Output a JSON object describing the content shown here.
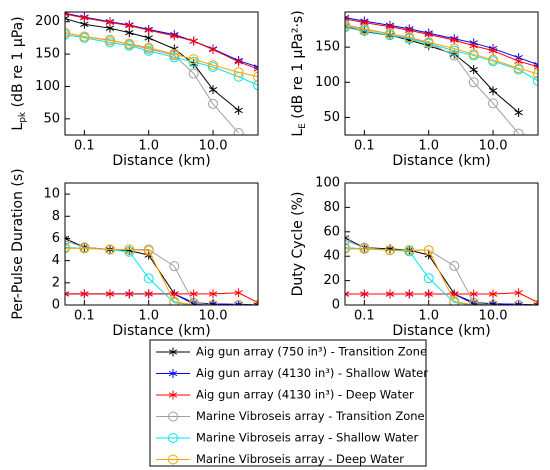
{
  "chart_data": [
    {
      "type": "line",
      "ylabel": {
        "main": "L",
        "sub": "pk",
        "rest": " (dB re 1 μPa)"
      },
      "xlabel": "Distance (km)",
      "x": [
        0.05,
        0.1,
        0.25,
        0.5,
        1,
        2.5,
        5,
        10,
        25,
        50
      ],
      "xscale": "log",
      "xlim": [
        0.05,
        50
      ],
      "xticks": [
        0.1,
        {
          "value": 1,
          "label": "1.0"
        },
        {
          "value": 10,
          "label": "10.0"
        }
      ],
      "ylim": [
        25,
        215
      ],
      "yticks": [
        50,
        100,
        150,
        200
      ],
      "series": [
        {
          "name": "Aig gun array (750 in³) - Transition Zone",
          "color": "#000000",
          "marker": "star",
          "values": [
            205,
            196,
            190,
            183,
            175,
            158,
            135,
            95,
            63,
            null
          ]
        },
        {
          "name": "Aig gun array (4130 in³) - Shallow Water",
          "color": "#0000ff",
          "marker": "star",
          "values": [
            213,
            207,
            200,
            195,
            188,
            180,
            170,
            158,
            140,
            130
          ]
        },
        {
          "name": "Aig gun array (4130 in³) - Deep Water",
          "color": "#ff0000",
          "marker": "star",
          "values": [
            212,
            206,
            199,
            194,
            187,
            178,
            170,
            157,
            138,
            127
          ]
        },
        {
          "name": "Marine Vibroseis array - Transition Zone",
          "color": "#a0a0a0",
          "marker": "circle",
          "values": [
            183,
            177,
            172,
            165,
            158,
            148,
            120,
            73,
            28,
            null
          ]
        },
        {
          "name": "Marine Vibroseis array - Shallow Water",
          "color": "#00e5ee",
          "marker": "circle",
          "values": [
            180,
            175,
            168,
            163,
            155,
            145,
            138,
            130,
            115,
            102
          ]
        },
        {
          "name": "Marine Vibroseis array - Deep Water",
          "color": "#ffa500",
          "marker": "circle",
          "values": [
            183,
            177,
            171,
            166,
            160,
            150,
            142,
            133,
            122,
            115
          ]
        }
      ]
    },
    {
      "type": "line",
      "ylabel": {
        "main": "L",
        "sub": "E",
        "rest": " (dB re 1 μPa²·s)"
      },
      "xlabel": "Distance (km)",
      "x": [
        0.05,
        0.1,
        0.25,
        0.5,
        1,
        2.5,
        5,
        10,
        25,
        50
      ],
      "xscale": "log",
      "xlim": [
        0.05,
        50
      ],
      "xticks": [
        0.1,
        {
          "value": 1,
          "label": "1.0"
        },
        {
          "value": 10,
          "label": "10.0"
        }
      ],
      "ylim": [
        25,
        200
      ],
      "yticks": [
        50,
        100,
        150
      ],
      "series": [
        {
          "color": "#000000",
          "marker": "star",
          "values": [
            180,
            172,
            167,
            160,
            152,
            140,
            118,
            88,
            57,
            null
          ]
        },
        {
          "color": "#0000ff",
          "marker": "star",
          "values": [
            192,
            187,
            181,
            176,
            170,
            162,
            156,
            148,
            135,
            125
          ]
        },
        {
          "color": "#ff0000",
          "marker": "star",
          "values": [
            190,
            185,
            179,
            174,
            168,
            160,
            152,
            145,
            130,
            122
          ]
        },
        {
          "color": "#a0a0a0",
          "marker": "circle",
          "values": [
            182,
            176,
            169,
            163,
            156,
            138,
            100,
            70,
            27,
            null
          ]
        },
        {
          "color": "#00e5ee",
          "marker": "circle",
          "values": [
            178,
            173,
            167,
            162,
            155,
            145,
            138,
            130,
            118,
            102
          ]
        },
        {
          "color": "#ffa500",
          "marker": "circle",
          "values": [
            180,
            175,
            169,
            164,
            157,
            148,
            140,
            132,
            120,
            112
          ]
        }
      ]
    },
    {
      "type": "line",
      "ylabel": {
        "main": "Per-Pulse Duration (s)"
      },
      "xlabel": "Distance (km)",
      "x": [
        0.05,
        0.1,
        0.25,
        0.5,
        1,
        2.5,
        5,
        10,
        25,
        50
      ],
      "xscale": "log",
      "xlim": [
        0.05,
        50
      ],
      "xticks": [
        0.1,
        {
          "value": 1,
          "label": "1.0"
        },
        {
          "value": 10,
          "label": "10.0"
        }
      ],
      "ylim": [
        0,
        11
      ],
      "yticks": [
        0,
        2,
        4,
        6,
        8,
        10
      ],
      "series": [
        {
          "color": "#000000",
          "marker": "star",
          "values": [
            6.0,
            5.2,
            5.0,
            4.9,
            4.5,
            1.0,
            0.2,
            0.1,
            0.05,
            0
          ]
        },
        {
          "color": "#0000ff",
          "marker": "star",
          "values": [
            1,
            1,
            1,
            1,
            1,
            1,
            0.1,
            0.1,
            0.05,
            0
          ]
        },
        {
          "color": "#ff0000",
          "marker": "star",
          "values": [
            1,
            1,
            1,
            1,
            1,
            1,
            1,
            1,
            1.1,
            0.2
          ]
        },
        {
          "color": "#a0a0a0",
          "marker": "circle",
          "values": [
            5.8,
            5.2,
            5.0,
            5.0,
            5.0,
            3.5,
            0.2,
            0,
            0,
            0
          ]
        },
        {
          "color": "#00e5ee",
          "marker": "circle",
          "values": [
            5.2,
            5.1,
            5.0,
            4.8,
            2.4,
            0.2,
            0,
            0,
            0,
            0
          ]
        },
        {
          "color": "#ffa500",
          "marker": "circle",
          "values": [
            5.1,
            5.1,
            5.0,
            5.0,
            4.9,
            0.3,
            0,
            0,
            0,
            0
          ]
        }
      ]
    },
    {
      "type": "line",
      "ylabel": {
        "main": "Duty Cycle (%)"
      },
      "xlabel": "Distance (km)",
      "x": [
        0.05,
        0.1,
        0.25,
        0.5,
        1,
        2.5,
        5,
        10,
        25,
        50
      ],
      "xscale": "log",
      "xlim": [
        0.05,
        50
      ],
      "xticks": [
        0.1,
        {
          "value": 1,
          "label": "1.0"
        },
        {
          "value": 10,
          "label": "10.0"
        }
      ],
      "ylim": [
        0,
        100
      ],
      "yticks": [
        0,
        20,
        40,
        60,
        80,
        100
      ],
      "series": [
        {
          "color": "#000000",
          "marker": "star",
          "values": [
            55,
            47,
            46,
            45,
            41,
            9,
            2,
            1,
            0.5,
            0
          ]
        },
        {
          "color": "#0000ff",
          "marker": "star",
          "values": [
            9,
            9,
            9,
            9,
            9,
            9,
            1,
            1,
            0.5,
            0
          ]
        },
        {
          "color": "#ff0000",
          "marker": "star",
          "values": [
            9,
            9,
            9,
            9,
            9,
            9,
            9,
            9,
            10,
            2
          ]
        },
        {
          "color": "#a0a0a0",
          "marker": "circle",
          "values": [
            53,
            47,
            45,
            45,
            45,
            32,
            2,
            0,
            0,
            0
          ]
        },
        {
          "color": "#00e5ee",
          "marker": "circle",
          "values": [
            47,
            46,
            45,
            44,
            22,
            2,
            0,
            0,
            0,
            0
          ]
        },
        {
          "color": "#ffa500",
          "marker": "circle",
          "values": [
            46,
            46,
            45,
            45,
            45,
            3,
            0,
            0,
            0,
            0
          ]
        }
      ]
    }
  ]
}
